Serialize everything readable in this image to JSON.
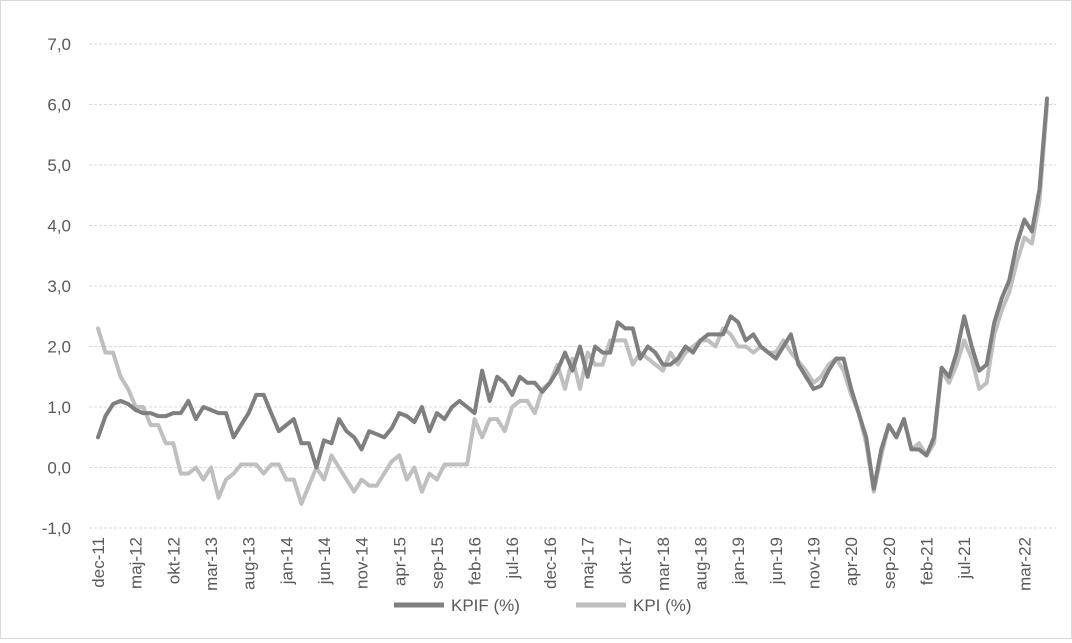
{
  "chart_data": {
    "type": "line",
    "title": "",
    "xlabel": "",
    "ylabel": "",
    "ylim": [
      -1.0,
      7.0
    ],
    "y_ticks": [
      "-1,0",
      "0,0",
      "1,0",
      "2,0",
      "3,0",
      "4,0",
      "5,0",
      "6,0",
      "7,0"
    ],
    "y_tick_values": [
      -1,
      0,
      1,
      2,
      3,
      4,
      5,
      6,
      7
    ],
    "grid": "horizontal-dashed",
    "legend_position": "bottom",
    "x_start": "2011-12",
    "x_end": "2022-06",
    "x_ticks": [
      {
        "label": "dec-11",
        "date": "2011-12"
      },
      {
        "label": "maj-12",
        "date": "2012-05"
      },
      {
        "label": "okt-12",
        "date": "2012-10"
      },
      {
        "label": "mar-13",
        "date": "2013-03"
      },
      {
        "label": "aug-13",
        "date": "2013-08"
      },
      {
        "label": "jan-14",
        "date": "2014-01"
      },
      {
        "label": "jun-14",
        "date": "2014-06"
      },
      {
        "label": "nov-14",
        "date": "2014-11"
      },
      {
        "label": "apr-15",
        "date": "2015-04"
      },
      {
        "label": "sep-15",
        "date": "2015-09"
      },
      {
        "label": "feb-16",
        "date": "2016-02"
      },
      {
        "label": "jul-16",
        "date": "2016-07"
      },
      {
        "label": "dec-16",
        "date": "2016-12"
      },
      {
        "label": "maj-17",
        "date": "2017-05"
      },
      {
        "label": "okt-17",
        "date": "2017-10"
      },
      {
        "label": "mar-18",
        "date": "2018-03"
      },
      {
        "label": "aug-18",
        "date": "2018-08"
      },
      {
        "label": "jan-19",
        "date": "2019-01"
      },
      {
        "label": "jun-19",
        "date": "2019-06"
      },
      {
        "label": "nov-19",
        "date": "2019-11"
      },
      {
        "label": "apr-20",
        "date": "2020-04"
      },
      {
        "label": "sep-20",
        "date": "2020-09"
      },
      {
        "label": "feb-21",
        "date": "2021-02"
      },
      {
        "label": "jul-21",
        "date": "2021-07"
      },
      {
        "label": "mar-22",
        "date": "2022-03"
      }
    ],
    "series": [
      {
        "name": "KPIF (%)",
        "color": "#7f7f7f",
        "points": [
          [
            "2011-12",
            0.5
          ],
          [
            "2012-01",
            0.85
          ],
          [
            "2012-02",
            1.05
          ],
          [
            "2012-03",
            1.1
          ],
          [
            "2012-04",
            1.05
          ],
          [
            "2012-05",
            0.95
          ],
          [
            "2012-06",
            0.9
          ],
          [
            "2012-07",
            0.9
          ],
          [
            "2012-08",
            0.85
          ],
          [
            "2012-09",
            0.85
          ],
          [
            "2012-10",
            0.9
          ],
          [
            "2012-11",
            0.9
          ],
          [
            "2012-12",
            1.1
          ],
          [
            "2013-01",
            0.8
          ],
          [
            "2013-02",
            1.0
          ],
          [
            "2013-03",
            0.95
          ],
          [
            "2013-04",
            0.9
          ],
          [
            "2013-05",
            0.9
          ],
          [
            "2013-06",
            0.5
          ],
          [
            "2013-07",
            0.7
          ],
          [
            "2013-08",
            0.9
          ],
          [
            "2013-09",
            1.2
          ],
          [
            "2013-10",
            1.2
          ],
          [
            "2013-11",
            0.9
          ],
          [
            "2013-12",
            0.6
          ],
          [
            "2014-01",
            0.7
          ],
          [
            "2014-02",
            0.8
          ],
          [
            "2014-03",
            0.4
          ],
          [
            "2014-04",
            0.4
          ],
          [
            "2014-05",
            0.0
          ],
          [
            "2014-06",
            0.45
          ],
          [
            "2014-07",
            0.4
          ],
          [
            "2014-08",
            0.8
          ],
          [
            "2014-09",
            0.6
          ],
          [
            "2014-10",
            0.5
          ],
          [
            "2014-11",
            0.3
          ],
          [
            "2014-12",
            0.6
          ],
          [
            "2015-01",
            0.55
          ],
          [
            "2015-02",
            0.5
          ],
          [
            "2015-03",
            0.65
          ],
          [
            "2015-04",
            0.9
          ],
          [
            "2015-05",
            0.85
          ],
          [
            "2015-06",
            0.75
          ],
          [
            "2015-07",
            1.0
          ],
          [
            "2015-08",
            0.6
          ],
          [
            "2015-09",
            0.9
          ],
          [
            "2015-10",
            0.8
          ],
          [
            "2015-11",
            1.0
          ],
          [
            "2015-12",
            1.1
          ],
          [
            "2016-01",
            1.0
          ],
          [
            "2016-02",
            0.9
          ],
          [
            "2016-03",
            1.6
          ],
          [
            "2016-04",
            1.1
          ],
          [
            "2016-05",
            1.5
          ],
          [
            "2016-06",
            1.4
          ],
          [
            "2016-07",
            1.2
          ],
          [
            "2016-08",
            1.5
          ],
          [
            "2016-09",
            1.4
          ],
          [
            "2016-10",
            1.4
          ],
          [
            "2016-11",
            1.25
          ],
          [
            "2016-12",
            1.4
          ],
          [
            "2017-01",
            1.6
          ],
          [
            "2017-02",
            1.9
          ],
          [
            "2017-03",
            1.6
          ],
          [
            "2017-04",
            2.0
          ],
          [
            "2017-05",
            1.5
          ],
          [
            "2017-06",
            2.0
          ],
          [
            "2017-07",
            1.9
          ],
          [
            "2017-08",
            1.9
          ],
          [
            "2017-09",
            2.4
          ],
          [
            "2017-10",
            2.3
          ],
          [
            "2017-11",
            2.3
          ],
          [
            "2017-12",
            1.8
          ],
          [
            "2018-01",
            2.0
          ],
          [
            "2018-02",
            1.9
          ],
          [
            "2018-03",
            1.7
          ],
          [
            "2018-04",
            1.7
          ],
          [
            "2018-05",
            1.8
          ],
          [
            "2018-06",
            2.0
          ],
          [
            "2018-07",
            1.9
          ],
          [
            "2018-08",
            2.1
          ],
          [
            "2018-09",
            2.2
          ],
          [
            "2018-10",
            2.2
          ],
          [
            "2018-11",
            2.2
          ],
          [
            "2018-12",
            2.5
          ],
          [
            "2019-01",
            2.4
          ],
          [
            "2019-02",
            2.1
          ],
          [
            "2019-03",
            2.2
          ],
          [
            "2019-04",
            2.0
          ],
          [
            "2019-05",
            1.9
          ],
          [
            "2019-06",
            1.8
          ],
          [
            "2019-07",
            2.0
          ],
          [
            "2019-08",
            2.2
          ],
          [
            "2019-09",
            1.7
          ],
          [
            "2019-10",
            1.5
          ],
          [
            "2019-11",
            1.3
          ],
          [
            "2019-12",
            1.35
          ],
          [
            "2020-01",
            1.6
          ],
          [
            "2020-02",
            1.8
          ],
          [
            "2020-03",
            1.8
          ],
          [
            "2020-04",
            1.3
          ],
          [
            "2020-05",
            0.9
          ],
          [
            "2020-06",
            0.5
          ],
          [
            "2020-07",
            -0.35
          ],
          [
            "2020-08",
            0.3
          ],
          [
            "2020-09",
            0.7
          ],
          [
            "2020-10",
            0.5
          ],
          [
            "2020-11",
            0.8
          ],
          [
            "2020-12",
            0.3
          ],
          [
            "2021-01",
            0.3
          ],
          [
            "2021-02",
            0.2
          ],
          [
            "2021-03",
            0.5
          ],
          [
            "2021-04",
            1.65
          ],
          [
            "2021-05",
            1.5
          ],
          [
            "2021-06",
            1.9
          ],
          [
            "2021-07",
            2.5
          ],
          [
            "2021-08",
            2.0
          ],
          [
            "2021-09",
            1.6
          ],
          [
            "2021-10",
            1.7
          ],
          [
            "2021-11",
            2.4
          ],
          [
            "2021-12",
            2.8
          ],
          [
            "2022-01",
            3.1
          ],
          [
            "2022-02",
            3.7
          ],
          [
            "2022-03",
            4.1
          ],
          [
            "2022-04",
            3.9
          ],
          [
            "2022-05",
            4.6
          ],
          [
            "2022-06",
            6.1
          ]
        ]
      },
      {
        "name": "KPI (%)",
        "color": "#bfbfbf",
        "points": [
          [
            "2011-12",
            2.3
          ],
          [
            "2012-01",
            1.9
          ],
          [
            "2012-02",
            1.9
          ],
          [
            "2012-03",
            1.5
          ],
          [
            "2012-04",
            1.3
          ],
          [
            "2012-05",
            1.0
          ],
          [
            "2012-06",
            1.0
          ],
          [
            "2012-07",
            0.7
          ],
          [
            "2012-08",
            0.7
          ],
          [
            "2012-09",
            0.4
          ],
          [
            "2012-10",
            0.4
          ],
          [
            "2012-11",
            -0.1
          ],
          [
            "2012-12",
            -0.1
          ],
          [
            "2013-01",
            0.0
          ],
          [
            "2013-02",
            -0.2
          ],
          [
            "2013-03",
            0.0
          ],
          [
            "2013-04",
            -0.5
          ],
          [
            "2013-05",
            -0.2
          ],
          [
            "2013-06",
            -0.1
          ],
          [
            "2013-07",
            0.05
          ],
          [
            "2013-08",
            0.05
          ],
          [
            "2013-09",
            0.05
          ],
          [
            "2013-10",
            -0.1
          ],
          [
            "2013-11",
            0.05
          ],
          [
            "2013-12",
            0.05
          ],
          [
            "2014-01",
            -0.2
          ],
          [
            "2014-02",
            -0.2
          ],
          [
            "2014-03",
            -0.6
          ],
          [
            "2014-04",
            -0.3
          ],
          [
            "2014-05",
            0.0
          ],
          [
            "2014-06",
            -0.2
          ],
          [
            "2014-07",
            0.2
          ],
          [
            "2014-08",
            0.0
          ],
          [
            "2014-09",
            -0.2
          ],
          [
            "2014-10",
            -0.4
          ],
          [
            "2014-11",
            -0.2
          ],
          [
            "2014-12",
            -0.3
          ],
          [
            "2015-01",
            -0.3
          ],
          [
            "2015-02",
            -0.1
          ],
          [
            "2015-03",
            0.1
          ],
          [
            "2015-04",
            0.2
          ],
          [
            "2015-05",
            -0.2
          ],
          [
            "2015-06",
            0.0
          ],
          [
            "2015-07",
            -0.4
          ],
          [
            "2015-08",
            -0.1
          ],
          [
            "2015-09",
            -0.2
          ],
          [
            "2015-10",
            0.05
          ],
          [
            "2015-11",
            0.05
          ],
          [
            "2015-12",
            0.05
          ],
          [
            "2016-01",
            0.05
          ],
          [
            "2016-02",
            0.8
          ],
          [
            "2016-03",
            0.5
          ],
          [
            "2016-04",
            0.8
          ],
          [
            "2016-05",
            0.8
          ],
          [
            "2016-06",
            0.6
          ],
          [
            "2016-07",
            1.0
          ],
          [
            "2016-08",
            1.1
          ],
          [
            "2016-09",
            1.1
          ],
          [
            "2016-10",
            0.9
          ],
          [
            "2016-11",
            1.3
          ],
          [
            "2016-12",
            1.4
          ],
          [
            "2017-01",
            1.7
          ],
          [
            "2017-02",
            1.3
          ],
          [
            "2017-03",
            1.8
          ],
          [
            "2017-04",
            1.3
          ],
          [
            "2017-05",
            1.9
          ],
          [
            "2017-06",
            1.7
          ],
          [
            "2017-07",
            1.7
          ],
          [
            "2017-08",
            2.1
          ],
          [
            "2017-09",
            2.1
          ],
          [
            "2017-10",
            2.1
          ],
          [
            "2017-11",
            1.7
          ],
          [
            "2017-12",
            1.9
          ],
          [
            "2018-01",
            1.8
          ],
          [
            "2018-02",
            1.7
          ],
          [
            "2018-03",
            1.6
          ],
          [
            "2018-04",
            1.9
          ],
          [
            "2018-05",
            1.7
          ],
          [
            "2018-06",
            1.9
          ],
          [
            "2018-07",
            2.0
          ],
          [
            "2018-08",
            2.1
          ],
          [
            "2018-09",
            2.1
          ],
          [
            "2018-10",
            2.0
          ],
          [
            "2018-11",
            2.3
          ],
          [
            "2018-12",
            2.2
          ],
          [
            "2019-01",
            2.0
          ],
          [
            "2019-02",
            2.0
          ],
          [
            "2019-03",
            1.9
          ],
          [
            "2019-04",
            2.0
          ],
          [
            "2019-05",
            1.9
          ],
          [
            "2019-06",
            1.9
          ],
          [
            "2019-07",
            2.1
          ],
          [
            "2019-08",
            1.9
          ],
          [
            "2019-09",
            1.75
          ],
          [
            "2019-10",
            1.6
          ],
          [
            "2019-11",
            1.4
          ],
          [
            "2019-12",
            1.5
          ],
          [
            "2020-01",
            1.7
          ],
          [
            "2020-02",
            1.8
          ],
          [
            "2020-03",
            1.6
          ],
          [
            "2020-04",
            1.2
          ],
          [
            "2020-05",
            0.9
          ],
          [
            "2020-06",
            0.4
          ],
          [
            "2020-07",
            -0.4
          ],
          [
            "2020-08",
            0.2
          ],
          [
            "2020-09",
            0.7
          ],
          [
            "2020-10",
            0.5
          ],
          [
            "2020-11",
            0.8
          ],
          [
            "2020-12",
            0.3
          ],
          [
            "2021-01",
            0.4
          ],
          [
            "2021-02",
            0.2
          ],
          [
            "2021-03",
            0.4
          ],
          [
            "2021-04",
            1.6
          ],
          [
            "2021-05",
            1.4
          ],
          [
            "2021-06",
            1.7
          ],
          [
            "2021-07",
            2.1
          ],
          [
            "2021-08",
            1.8
          ],
          [
            "2021-09",
            1.3
          ],
          [
            "2021-10",
            1.4
          ],
          [
            "2021-11",
            2.2
          ],
          [
            "2021-12",
            2.6
          ],
          [
            "2022-01",
            2.9
          ],
          [
            "2022-02",
            3.4
          ],
          [
            "2022-03",
            3.8
          ],
          [
            "2022-04",
            3.7
          ],
          [
            "2022-05",
            4.4
          ],
          [
            "2022-06",
            6.0
          ]
        ]
      }
    ]
  }
}
